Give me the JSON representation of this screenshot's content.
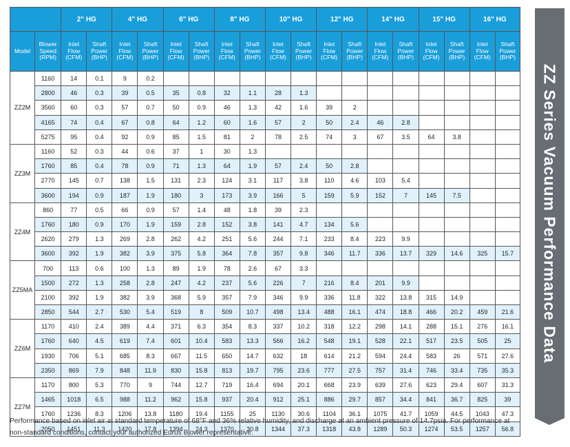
{
  "header": {
    "model_label": "Model",
    "speed_label": "Blower Speed (RPM)",
    "vacuum_levels": [
      "2\"  HG",
      "4\"  HG",
      "6\"  HG",
      "8\"  HG",
      "10\"  HG",
      "12\"  HG",
      "14\"  HG",
      "15\"  HG",
      "16\"  HG"
    ],
    "flow_label": "Inlet Flow (CFM)",
    "power_label": "Shaft Power (BHP)"
  },
  "groups": [
    {
      "model": "ZZ2M",
      "rows": [
        {
          "rpm": "1160",
          "cells": [
            "14",
            "0.1",
            "9",
            "0.2",
            "",
            "",
            "",
            "",
            "",
            "",
            "",
            "",
            "",
            "",
            "",
            "",
            "",
            ""
          ]
        },
        {
          "rpm": "2800",
          "cells": [
            "46",
            "0.3",
            "39",
            "0.5",
            "35",
            "0.8",
            "32",
            "1.1",
            "28",
            "1.3",
            "",
            "",
            "",
            "",
            "",
            "",
            "",
            ""
          ]
        },
        {
          "rpm": "3560",
          "cells": [
            "60",
            "0.3",
            "57",
            "0.7",
            "50",
            "0.9",
            "46",
            "1.3",
            "42",
            "1.6",
            "39",
            "2",
            "",
            "",
            "",
            "",
            "",
            ""
          ]
        },
        {
          "rpm": "4165",
          "cells": [
            "74",
            "0.4",
            "67",
            "0.8",
            "64",
            "1.2",
            "60",
            "1.6",
            "57",
            "2",
            "50",
            "2.4",
            "46",
            "2.8",
            "",
            "",
            "",
            ""
          ]
        },
        {
          "rpm": "5275",
          "cells": [
            "95",
            "0.4",
            "92",
            "0.9",
            "85",
            "1.5",
            "81",
            "2",
            "78",
            "2.5",
            "74",
            "3",
            "67",
            "3.5",
            "64",
            "3.8",
            "",
            ""
          ]
        }
      ]
    },
    {
      "model": "ZZ3M",
      "rows": [
        {
          "rpm": "1160",
          "cells": [
            "52",
            "0.3",
            "44",
            "0.6",
            "37",
            "1",
            "30",
            "1.3",
            "",
            "",
            "",
            "",
            "",
            "",
            "",
            "",
            "",
            ""
          ]
        },
        {
          "rpm": "1760",
          "cells": [
            "85",
            "0.4",
            "78",
            "0.9",
            "71",
            "1.3",
            "64",
            "1.9",
            "57",
            "2.4",
            "50",
            "2.8",
            "",
            "",
            "",
            "",
            "",
            ""
          ]
        },
        {
          "rpm": "2770",
          "cells": [
            "145",
            "0.7",
            "138",
            "1.5",
            "131",
            "2.3",
            "124",
            "3.1",
            "117",
            "3.8",
            "110",
            "4.6",
            "103",
            "5.4",
            "",
            "",
            "",
            ""
          ]
        },
        {
          "rpm": "3600",
          "cells": [
            "194",
            "0.9",
            "187",
            "1.9",
            "180",
            "3",
            "173",
            "3.9",
            "166",
            "5",
            "159",
            "5.9",
            "152",
            "7",
            "145",
            "7.5",
            "",
            ""
          ]
        }
      ]
    },
    {
      "model": "ZZ4M",
      "rows": [
        {
          "rpm": "860",
          "cells": [
            "77",
            "0.5",
            "66",
            "0.9",
            "57",
            "1.4",
            "48",
            "1.8",
            "39",
            "2.3",
            "",
            "",
            "",
            "",
            "",
            "",
            "",
            ""
          ]
        },
        {
          "rpm": "1760",
          "cells": [
            "180",
            "0.9",
            "170",
            "1.9",
            "159",
            "2.8",
            "152",
            "3.8",
            "141",
            "4.7",
            "134",
            "5.6",
            "",
            "",
            "",
            "",
            "",
            ""
          ]
        },
        {
          "rpm": "2620",
          "cells": [
            "279",
            "1.3",
            "269",
            "2.8",
            "262",
            "4.2",
            "251",
            "5.6",
            "244",
            "7.1",
            "233",
            "8.4",
            "223",
            "9.9",
            "",
            "",
            "",
            ""
          ]
        },
        {
          "rpm": "3600",
          "cells": [
            "392",
            "1.9",
            "382",
            "3.9",
            "375",
            "5.8",
            "364",
            "7.8",
            "357",
            "9.8",
            "346",
            "11.7",
            "336",
            "13.7",
            "329",
            "14.6",
            "325",
            "15.7"
          ]
        }
      ]
    },
    {
      "model": "ZZ5MA",
      "rows": [
        {
          "rpm": "700",
          "cells": [
            "113",
            "0.6",
            "100",
            "1.3",
            "89",
            "1.9",
            "78",
            "2.6",
            "67",
            "3.3",
            "",
            "",
            "",
            "",
            "",
            "",
            "",
            ""
          ]
        },
        {
          "rpm": "1500",
          "cells": [
            "272",
            "1.3",
            "258",
            "2.8",
            "247",
            "4.2",
            "237",
            "5.6",
            "226",
            "7",
            "216",
            "8.4",
            "201",
            "9.9",
            "",
            "",
            "",
            ""
          ]
        },
        {
          "rpm": "2100",
          "cells": [
            "392",
            "1.9",
            "382",
            "3.9",
            "368",
            "5.9",
            "357",
            "7.9",
            "346",
            "9.9",
            "336",
            "11.8",
            "322",
            "13.8",
            "315",
            "14.9",
            "",
            ""
          ]
        },
        {
          "rpm": "2850",
          "cells": [
            "544",
            "2.7",
            "530",
            "5.4",
            "519",
            "8",
            "509",
            "10.7",
            "498",
            "13.4",
            "488",
            "16.1",
            "474",
            "18.8",
            "466",
            "20.2",
            "459",
            "21.6"
          ]
        }
      ]
    },
    {
      "model": "ZZ6M",
      "rows": [
        {
          "rpm": "1170",
          "cells": [
            "410",
            "2.4",
            "389",
            "4.4",
            "371",
            "6.3",
            "354",
            "8.3",
            "337",
            "10.2",
            "318",
            "12.2",
            "298",
            "14.1",
            "288",
            "15.1",
            "276",
            "16.1"
          ]
        },
        {
          "rpm": "1760",
          "cells": [
            "640",
            "4.5",
            "619",
            "7.4",
            "601",
            "10.4",
            "583",
            "13.3",
            "566",
            "16.2",
            "548",
            "19.1",
            "528",
            "22.1",
            "517",
            "23.5",
            "505",
            "25"
          ]
        },
        {
          "rpm": "1930",
          "cells": [
            "706",
            "5.1",
            "685",
            "8.3",
            "667",
            "11.5",
            "650",
            "14.7",
            "632",
            "18",
            "614",
            "21.2",
            "594",
            "24.4",
            "583",
            "26",
            "571",
            "27.6"
          ]
        },
        {
          "rpm": "2350",
          "cells": [
            "869",
            "7.9",
            "848",
            "11.9",
            "830",
            "15.8",
            "813",
            "19.7",
            "795",
            "23.6",
            "777",
            "27.5",
            "757",
            "31.4",
            "746",
            "33.4",
            "735",
            "35.3"
          ]
        }
      ]
    },
    {
      "model": "ZZ7M",
      "rows": [
        {
          "rpm": "1170",
          "cells": [
            "800",
            "5.3",
            "770",
            "9",
            "744",
            "12.7",
            "719",
            "16.4",
            "694",
            "20.1",
            "668",
            "23.9",
            "639",
            "27.6",
            "623",
            "29.4",
            "607",
            "31.3"
          ]
        },
        {
          "rpm": "1465",
          "cells": [
            "1018",
            "6.5",
            "988",
            "11.2",
            "962",
            "15.8",
            "937",
            "20.4",
            "912",
            "25.1",
            "886",
            "29.7",
            "857",
            "34.4",
            "841",
            "36.7",
            "825",
            "39"
          ]
        },
        {
          "rpm": "1760",
          "cells": [
            "1236",
            "8.3",
            "1206",
            "13.8",
            "1180",
            "19.4",
            "1155",
            "25",
            "1130",
            "30.6",
            "1104",
            "36.1",
            "1075",
            "41.7",
            "1059",
            "44.5",
            "1043",
            "47.3"
          ]
        },
        {
          "rpm": "2050",
          "cells": [
            "1451",
            "11.3",
            "1420",
            "17.8",
            "1394",
            "24.3",
            "1370",
            "30.8",
            "1344",
            "37.3",
            "1318",
            "43.8",
            "1289",
            "50.3",
            "1274",
            "53.5",
            "1257",
            "56.8"
          ]
        }
      ]
    }
  ],
  "banner_title": "ZZ Series Vacuum Performance Data",
  "footnote": "Performance based on inlet air at standard temperature of 68°F and 36% relative humidity, and discharge at an ambient pressure of 14.7psia. For performance at non-standard conditions, contact your authorized Eurus Blower representative.",
  "colors": {
    "header_blue": "#1a9ed9",
    "row_tint": "#e1f1fb",
    "banner_gray": "#676d72"
  }
}
